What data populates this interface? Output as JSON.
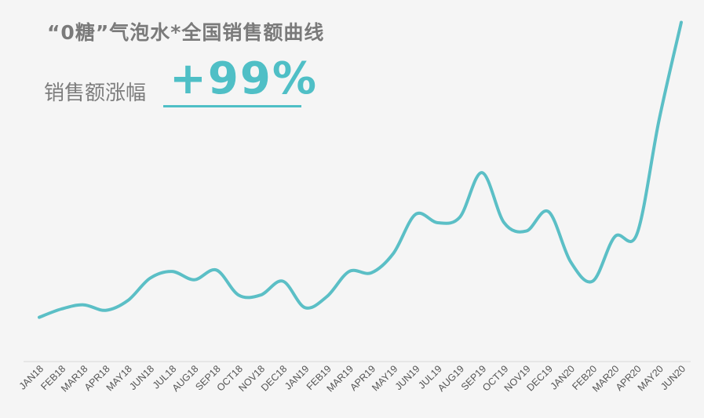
{
  "header": {
    "title": "“0糖”气泡水*全国销售额曲线",
    "growth_label": "销售额涨幅",
    "growth_value": "+99%"
  },
  "colors": {
    "accent": "#4fbfc6",
    "line": "#5bbfc6",
    "axis": "#d6d6d6",
    "title_text": "#7a7a7a"
  },
  "chart_data": {
    "type": "line",
    "title": "“0糖”气泡水*全国销售额曲线",
    "xlabel": "",
    "ylabel": "",
    "categories": [
      "JAN18",
      "FEB18",
      "MAR18",
      "APR18",
      "MAY18",
      "JUN18",
      "JUL18",
      "AUG18",
      "SEP18",
      "OCT18",
      "NOV18",
      "DEC18",
      "JAN19",
      "FEB19",
      "MAR19",
      "APR19",
      "MAY19",
      "JUN19",
      "JUL19",
      "AUG19",
      "SEP19",
      "OCT19",
      "NOV19",
      "DEC19",
      "JAN20",
      "FEB20",
      "MAR20",
      "APR20",
      "MAY20",
      "JUN20"
    ],
    "values": [
      8,
      11,
      12.5,
      10.5,
      14,
      22,
      24.5,
      21.5,
      25,
      16,
      16,
      21,
      11.5,
      15.5,
      24.5,
      24,
      31,
      45,
      42,
      44,
      60,
      42,
      39,
      46,
      28,
      21,
      37,
      38,
      79,
      114
    ],
    "ylim": [
      0,
      115
    ],
    "grid": false,
    "annotations": [
      "销售额涨幅",
      "+99%"
    ]
  }
}
